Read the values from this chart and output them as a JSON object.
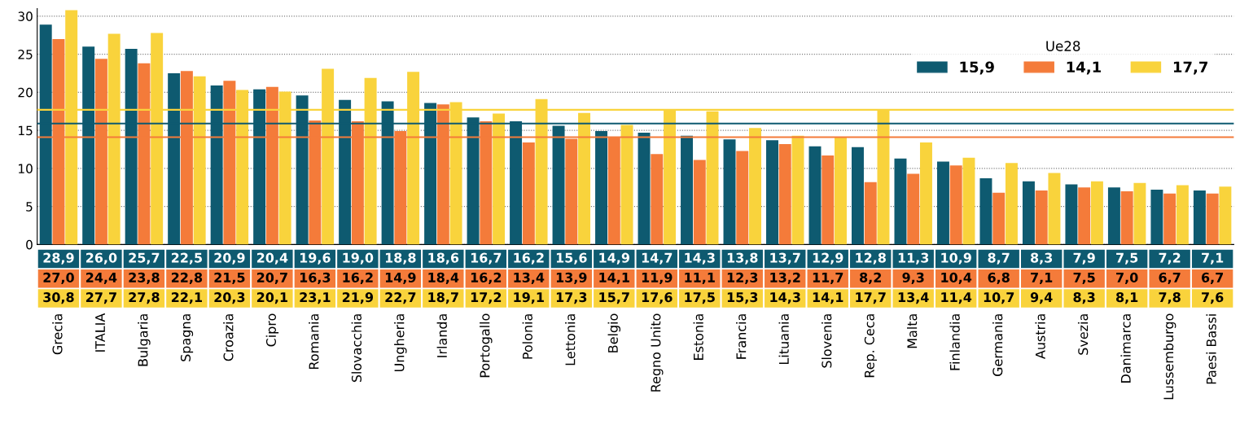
{
  "chart_data": {
    "type": "bar",
    "categories": [
      "Grecia",
      "ITALIA",
      "Bulgaria",
      "Spagna",
      "Croazia",
      "Cipro",
      "Romania",
      "Slovacchia",
      "Ungheria",
      "Irlanda",
      "Portogallo",
      "Polonia",
      "Lettonia",
      "Belgio",
      "Regno Unito",
      "Estonia",
      "Francia",
      "Lituania",
      "Slovenia",
      "Rep. Ceca",
      "Malta",
      "Finlandia",
      "Germania",
      "Austria",
      "Svezia",
      "Danimarca",
      "Lussemburgo",
      "Paesi Bassi"
    ],
    "series": [
      {
        "color": "#0e5a70",
        "values": [
          28.9,
          26.0,
          25.7,
          22.5,
          20.9,
          20.4,
          19.6,
          19.0,
          18.8,
          18.6,
          16.7,
          16.2,
          15.6,
          14.9,
          14.7,
          14.3,
          13.8,
          13.7,
          12.9,
          12.8,
          11.3,
          10.9,
          8.7,
          8.3,
          7.9,
          7.5,
          7.2,
          7.1
        ],
        "value_labels": [
          "28,9",
          "26,0",
          "25,7",
          "22,5",
          "20,9",
          "20,4",
          "19,6",
          "19,0",
          "18,8",
          "18,6",
          "16,7",
          "16,2",
          "15,6",
          "14,9",
          "14,7",
          "14,3",
          "13,8",
          "13,7",
          "12,9",
          "12,8",
          "11,3",
          "10,9",
          "8,7",
          "8,3",
          "7,9",
          "7,5",
          "7,2",
          "7,1"
        ]
      },
      {
        "color": "#f47b3a",
        "values": [
          27.0,
          24.4,
          23.8,
          22.8,
          21.5,
          20.7,
          16.3,
          16.2,
          14.9,
          18.4,
          16.2,
          13.4,
          13.9,
          14.1,
          11.9,
          11.1,
          12.3,
          13.2,
          11.7,
          8.2,
          9.3,
          10.4,
          6.8,
          7.1,
          7.5,
          7.0,
          6.7,
          6.7
        ],
        "value_labels": [
          "27,0",
          "24,4",
          "23,8",
          "22,8",
          "21,5",
          "20,7",
          "16,3",
          "16,2",
          "14,9",
          "18,4",
          "16,2",
          "13,4",
          "13,9",
          "14,1",
          "11,9",
          "11,1",
          "12,3",
          "13,2",
          "11,7",
          "8,2",
          "9,3",
          "10,4",
          "6,8",
          "7,1",
          "7,5",
          "7,0",
          "6,7",
          "6,7"
        ]
      },
      {
        "color": "#f9d33c",
        "values": [
          30.8,
          27.7,
          27.8,
          22.1,
          20.3,
          20.1,
          23.1,
          21.9,
          22.7,
          18.7,
          17.2,
          19.1,
          17.3,
          15.7,
          17.6,
          17.5,
          15.3,
          14.3,
          14.1,
          17.7,
          13.4,
          11.4,
          10.7,
          9.4,
          8.3,
          8.1,
          7.8,
          7.6
        ],
        "value_labels": [
          "30,8",
          "27,7",
          "27,8",
          "22,1",
          "20,3",
          "20,1",
          "23,1",
          "21,9",
          "22,7",
          "18,7",
          "17,2",
          "19,1",
          "17,3",
          "15,7",
          "17,6",
          "17,5",
          "15,3",
          "14,3",
          "14,1",
          "17,7",
          "13,4",
          "11,4",
          "10,7",
          "9,4",
          "8,3",
          "8,1",
          "7,8",
          "7,6"
        ]
      }
    ],
    "ylim": [
      0,
      31
    ],
    "yticks": [
      0,
      5,
      10,
      15,
      20,
      25,
      30
    ],
    "grid": "y",
    "ref_lines": [
      {
        "axis": "y",
        "value": 15.9,
        "label": "15,9",
        "color": "#0e5a70"
      },
      {
        "axis": "y",
        "value": 14.1,
        "label": "14,1",
        "color": "#f47b3a"
      },
      {
        "axis": "y",
        "value": 17.7,
        "label": "17,7",
        "color": "#f9d33c"
      }
    ],
    "legend": "top right",
    "legend_title": "Ue28"
  }
}
